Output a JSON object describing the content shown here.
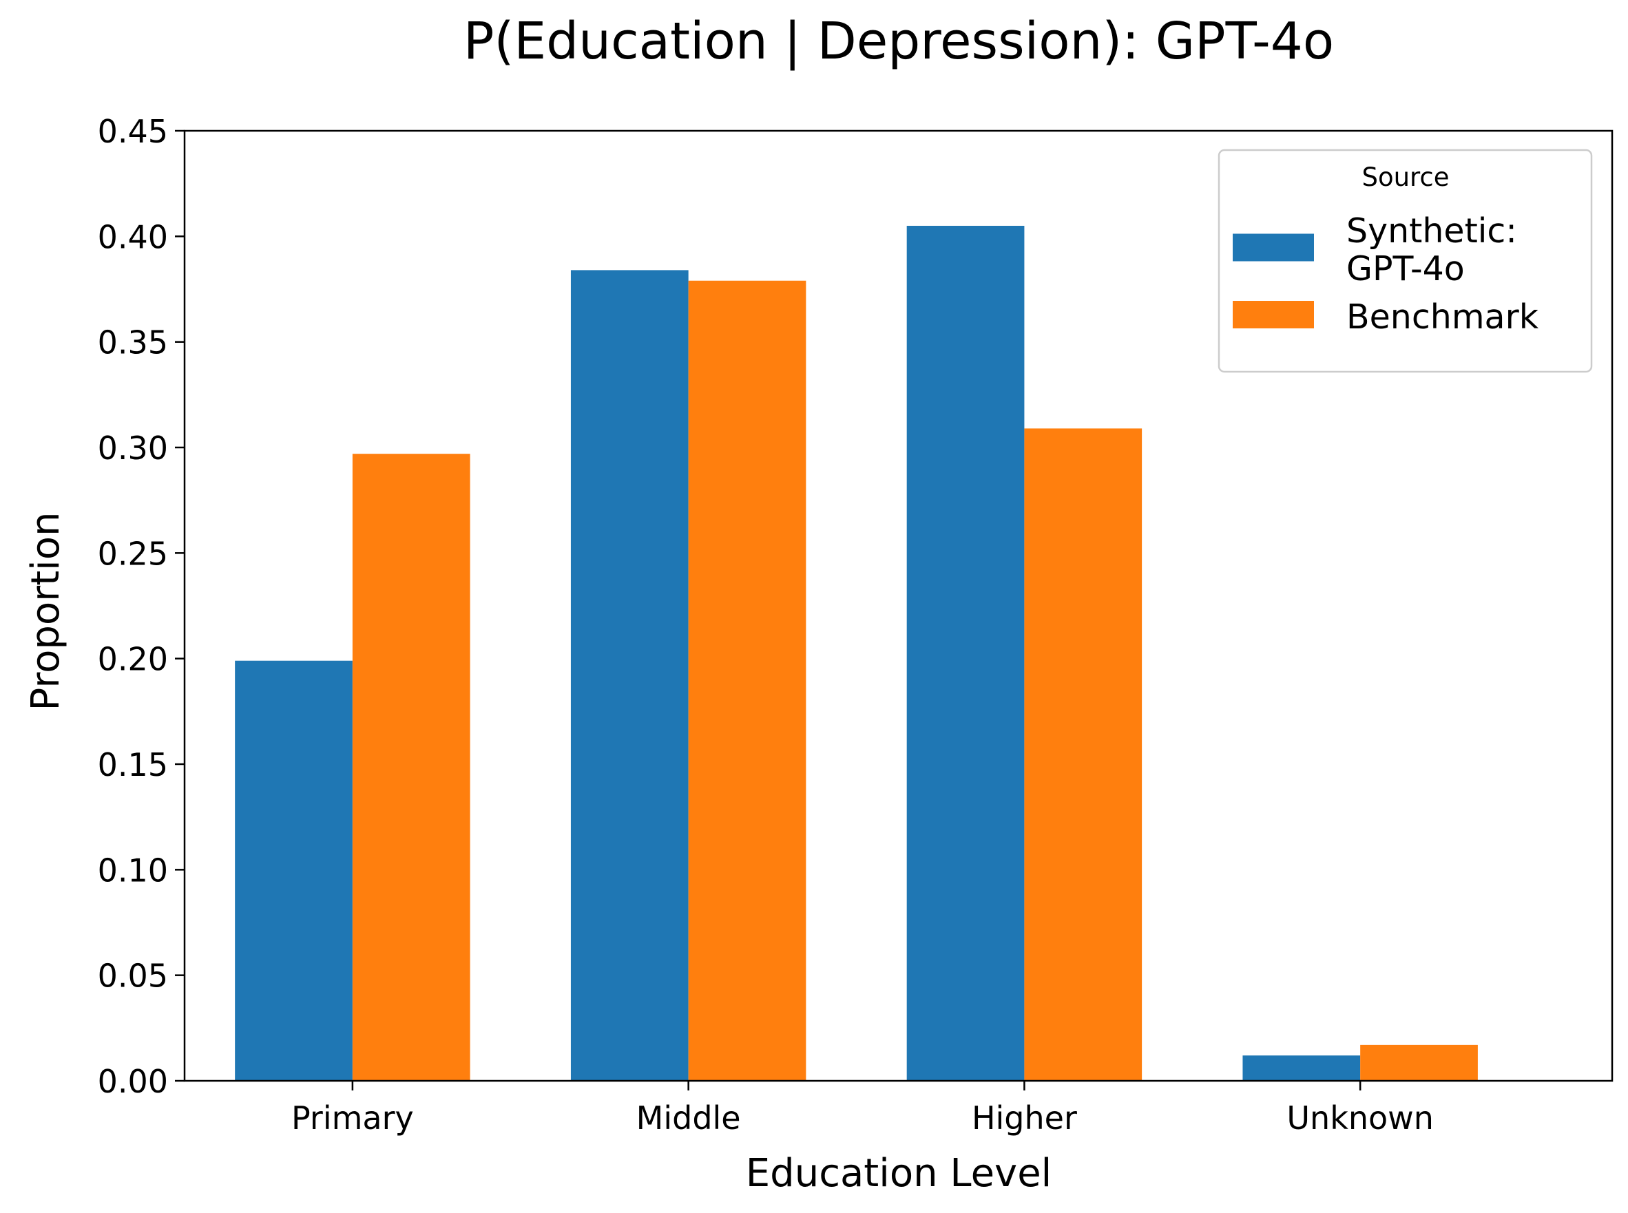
{
  "chart_data": {
    "type": "bar",
    "title": "P(Education | Depression): GPT-4o",
    "xlabel": "Education Level",
    "ylabel": "Proportion",
    "categories": [
      "Primary",
      "Middle",
      "Higher",
      "Unknown"
    ],
    "series": [
      {
        "name": "Synthetic:\nGPT-4o",
        "color": "#1f77b4",
        "values": [
          0.199,
          0.384,
          0.405,
          0.012
        ]
      },
      {
        "name": "Benchmark",
        "color": "#ff7f0e",
        "values": [
          0.297,
          0.379,
          0.309,
          0.017
        ]
      }
    ],
    "ylim": [
      0,
      0.45
    ],
    "yticks": [
      "0.00",
      "0.05",
      "0.10",
      "0.15",
      "0.20",
      "0.25",
      "0.30",
      "0.35",
      "0.40",
      "0.45"
    ],
    "grid": false,
    "legend": {
      "title": "Source",
      "position": "top-right"
    }
  }
}
